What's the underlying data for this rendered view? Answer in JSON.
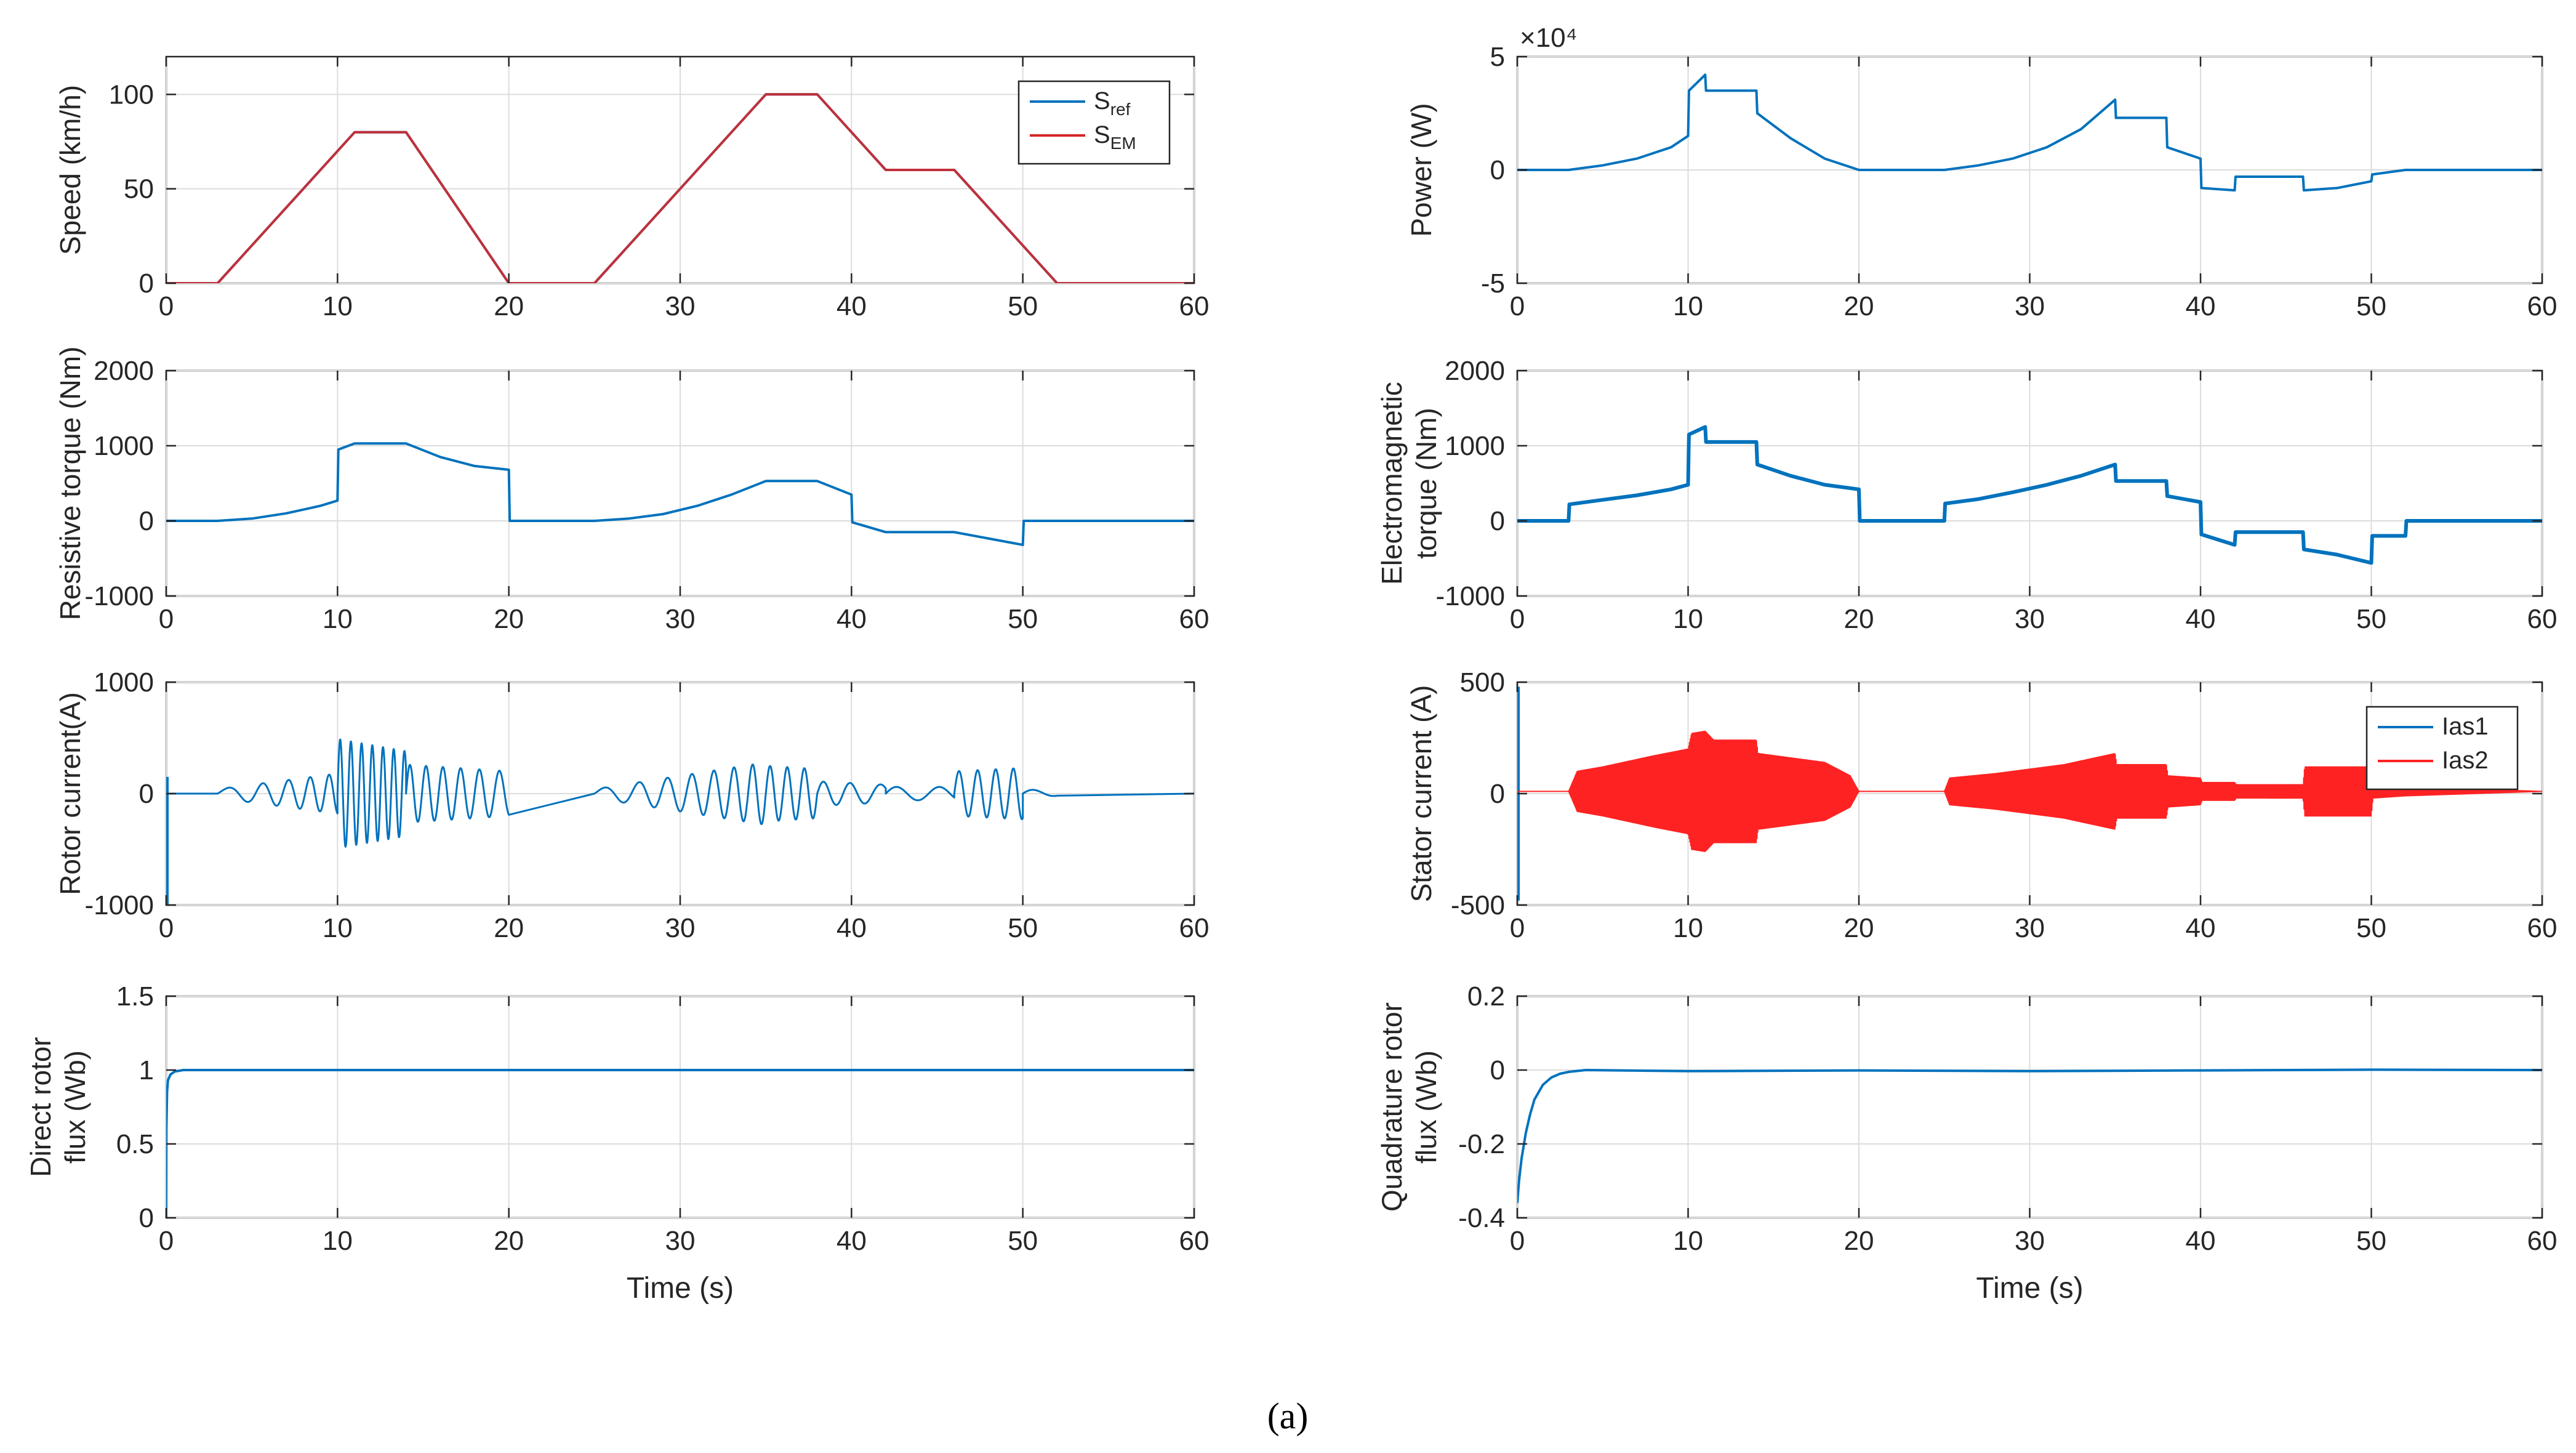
{
  "caption": "(a)",
  "colors": {
    "blue": "#0072BD",
    "red": "#D62728",
    "dark_red": "#C0303A",
    "bright_red": "#FF2222"
  },
  "chart_data": [
    {
      "id": "speed",
      "type": "line",
      "title": "",
      "xlabel": "",
      "ylabel": "Speed (km/h)",
      "xlim": [
        0,
        60
      ],
      "ylim": [
        0,
        120
      ],
      "xticks": [
        0,
        10,
        20,
        30,
        40,
        50,
        60
      ],
      "xtick_labels": [
        "0",
        "10",
        "20",
        "30",
        "40",
        "50",
        "60"
      ],
      "yticks": [
        0,
        50,
        100
      ],
      "ytick_labels": [
        "0",
        "50",
        "100"
      ],
      "grid": true,
      "exponent_label": "",
      "legend": {
        "position": "top-right",
        "entries": [
          {
            "label": "S",
            "sub": "ref",
            "color": "#0072BD"
          },
          {
            "label": "S",
            "sub": "EM",
            "color": "#D62728"
          }
        ]
      },
      "series": [
        {
          "name": "S_ref",
          "color": "#0072BD",
          "width": 4,
          "x": [
            0,
            3,
            11,
            14,
            20,
            25,
            35,
            38,
            42,
            46,
            52,
            60
          ],
          "y": [
            0,
            0,
            80,
            80,
            0,
            0,
            100,
            100,
            60,
            60,
            0,
            0
          ]
        },
        {
          "name": "S_EM",
          "color": "#C0303A",
          "width": 4,
          "x": [
            0,
            3,
            11,
            14,
            20,
            25,
            35,
            38,
            42,
            46,
            52,
            60
          ],
          "y": [
            0,
            0,
            80,
            80,
            0,
            0,
            100,
            100,
            60,
            60,
            0,
            0
          ]
        }
      ]
    },
    {
      "id": "power",
      "type": "line",
      "title": "",
      "xlabel": "",
      "ylabel": "Power (W)",
      "xlim": [
        0,
        60
      ],
      "ylim": [
        -5,
        5
      ],
      "xticks": [
        0,
        10,
        20,
        30,
        40,
        50,
        60
      ],
      "xtick_labels": [
        "0",
        "10",
        "20",
        "30",
        "40",
        "50",
        "60"
      ],
      "yticks": [
        -5,
        0,
        5
      ],
      "ytick_labels": [
        "-5",
        "0",
        "5"
      ],
      "grid": true,
      "exponent_label": "×10⁴",
      "legend": null,
      "series": [
        {
          "name": "Power",
          "color": "#0072BD",
          "width": 4,
          "x": [
            0,
            3,
            5,
            7,
            9,
            10,
            10.05,
            11,
            11.05,
            14,
            14.05,
            16,
            18,
            20,
            25,
            27,
            29,
            31,
            33,
            35,
            35.05,
            38,
            38.05,
            40,
            40.05,
            42,
            42.05,
            46,
            46.05,
            48,
            50,
            50.05,
            52,
            60
          ],
          "y": [
            0,
            0,
            0.2,
            0.5,
            1.0,
            1.5,
            3.5,
            4.2,
            3.5,
            3.5,
            2.5,
            1.4,
            0.5,
            0,
            0,
            0.2,
            0.5,
            1.0,
            1.8,
            3.1,
            2.3,
            2.3,
            1.0,
            0.5,
            -0.8,
            -0.9,
            -0.3,
            -0.3,
            -0.9,
            -0.8,
            -0.5,
            -0.2,
            0,
            0
          ]
        }
      ]
    },
    {
      "id": "resistive",
      "type": "line",
      "title": "",
      "xlabel": "",
      "ylabel": "Resistive torque (Nm)",
      "xlim": [
        0,
        60
      ],
      "ylim": [
        -1000,
        2000
      ],
      "xticks": [
        0,
        10,
        20,
        30,
        40,
        50,
        60
      ],
      "xtick_labels": [
        "0",
        "10",
        "20",
        "30",
        "40",
        "50",
        "60"
      ],
      "yticks": [
        -1000,
        0,
        1000,
        2000
      ],
      "ytick_labels": [
        "-1000",
        "0",
        "1000",
        "2000"
      ],
      "grid": true,
      "exponent_label": "",
      "legend": null,
      "series": [
        {
          "name": "Resistive torque",
          "color": "#0072BD",
          "width": 4,
          "x": [
            0,
            3,
            5,
            7,
            9,
            10,
            10.05,
            11,
            14,
            16,
            18,
            20,
            20.05,
            25,
            27,
            29,
            31,
            33,
            35,
            38,
            40,
            40.05,
            42,
            46,
            50,
            50.05,
            60
          ],
          "y": [
            0,
            0,
            30,
            100,
            200,
            270,
            950,
            1030,
            1030,
            850,
            730,
            680,
            0,
            0,
            30,
            90,
            200,
            350,
            530,
            530,
            350,
            -20,
            -150,
            -150,
            -320,
            0,
            0
          ]
        }
      ]
    },
    {
      "id": "em_torque",
      "type": "line",
      "title": "",
      "xlabel": "",
      "ylabel": "Electromagnetic torque (Nm)",
      "xlim": [
        0,
        60
      ],
      "ylim": [
        -1000,
        2000
      ],
      "xticks": [
        0,
        10,
        20,
        30,
        40,
        50,
        60
      ],
      "xtick_labels": [
        "0",
        "10",
        "20",
        "30",
        "40",
        "50",
        "60"
      ],
      "yticks": [
        -1000,
        0,
        1000,
        2000
      ],
      "ytick_labels": [
        "-1000",
        "0",
        "1000",
        "2000"
      ],
      "grid": true,
      "exponent_label": "",
      "legend": null,
      "series": [
        {
          "name": "Electromagnetic torque",
          "color": "#0072BD",
          "width": 6,
          "x": [
            0,
            3,
            3.05,
            5,
            7,
            9,
            10,
            10.05,
            11,
            11.05,
            14,
            14.05,
            16,
            18,
            20,
            20.05,
            25,
            25.05,
            27,
            29,
            31,
            33,
            35,
            35.05,
            38,
            38.05,
            40,
            40.05,
            42,
            42.05,
            46,
            46.05,
            48,
            50,
            50.05,
            52,
            52.05,
            60
          ],
          "y": [
            0,
            0,
            220,
            280,
            340,
            420,
            480,
            1150,
            1250,
            1050,
            1050,
            750,
            600,
            480,
            420,
            0,
            0,
            230,
            290,
            380,
            480,
            600,
            750,
            530,
            530,
            330,
            250,
            -180,
            -320,
            -150,
            -150,
            -380,
            -450,
            -560,
            -200,
            -200,
            0,
            0
          ]
        }
      ]
    },
    {
      "id": "rotor_current",
      "type": "line",
      "title": "",
      "xlabel": "",
      "ylabel": "Rotor current(A)",
      "xlim": [
        0,
        60
      ],
      "ylim": [
        -1000,
        1000
      ],
      "xticks": [
        0,
        10,
        20,
        30,
        40,
        50,
        60
      ],
      "xtick_labels": [
        "0",
        "10",
        "20",
        "30",
        "40",
        "50",
        "60"
      ],
      "yticks": [
        -1000,
        0,
        1000
      ],
      "ytick_labels": [
        "-1000",
        "0",
        "1000"
      ],
      "grid": true,
      "exponent_label": "",
      "legend": null,
      "series": [
        {
          "name": "Rotor current",
          "color": "#0072BD",
          "width": 3,
          "oscillation": [
            {
              "t0": 3,
              "t1": 10,
              "f0": 0.35,
              "f1": 1.0,
              "a0": 40,
              "a1": 180
            },
            {
              "t0": 10,
              "t1": 14,
              "f0": 1.6,
              "f1": 1.6,
              "a0": 490,
              "a1": 380
            },
            {
              "t0": 14,
              "t1": 20,
              "f0": 1.1,
              "f1": 0.8,
              "a0": 260,
              "a1": 200
            },
            {
              "t0": 25,
              "t1": 35,
              "f0": 0.4,
              "f1": 1.0,
              "a0": 40,
              "a1": 280
            },
            {
              "t0": 35,
              "t1": 38,
              "f0": 1.0,
              "f1": 1.0,
              "a0": 250,
              "a1": 220
            },
            {
              "t0": 38,
              "t1": 42,
              "f0": 0.7,
              "f1": 0.5,
              "a0": 110,
              "a1": 80
            },
            {
              "t0": 42,
              "t1": 46,
              "f0": 0.4,
              "f1": 0.4,
              "a0": 60,
              "a1": 60
            },
            {
              "t0": 46,
              "t1": 50,
              "f0": 0.9,
              "f1": 1.0,
              "a0": 200,
              "a1": 230
            },
            {
              "t0": 50,
              "t1": 52,
              "f0": 0.4,
              "f1": 0.4,
              "a0": 40,
              "a1": 20
            }
          ],
          "spike": {
            "t": 0,
            "min": -1000,
            "max": 150
          }
        }
      ]
    },
    {
      "id": "stator_current",
      "type": "line",
      "title": "",
      "xlabel": "",
      "ylabel": "Stator current (A)",
      "xlim": [
        0,
        60
      ],
      "ylim": [
        -500,
        500
      ],
      "xticks": [
        0,
        10,
        20,
        30,
        40,
        50,
        60
      ],
      "xtick_labels": [
        "0",
        "10",
        "20",
        "30",
        "40",
        "50",
        "60"
      ],
      "yticks": [
        -500,
        0,
        500
      ],
      "ytick_labels": [
        "-500",
        "0",
        "500"
      ],
      "grid": true,
      "exponent_label": "",
      "legend": {
        "position": "top-right",
        "entries": [
          {
            "label": "Ias1",
            "sub": "",
            "color": "#0072BD"
          },
          {
            "label": "Ias2",
            "sub": "",
            "color": "#FF2222"
          }
        ]
      },
      "series": [
        {
          "name": "Ias1",
          "color": "#0072BD",
          "width": 3,
          "envelope_only": false,
          "spike": {
            "t": 0,
            "min": -480,
            "max": 480
          }
        },
        {
          "name": "Ias2",
          "color": "#FF2222",
          "width": 2,
          "envelope": {
            "x": [
              0,
              3,
              3.5,
              5,
              8,
              10,
              10.2,
              11,
              11.5,
              14,
              14.1,
              18,
              19.5,
              20,
              25,
              25.3,
              28,
              32,
              35,
              35.1,
              38,
              38.1,
              40,
              40.1,
              42,
              42.1,
              46,
              46.1,
              49,
              50,
              50.1,
              52,
              60
            ],
            "y": [
              0,
              0,
              90,
              110,
              160,
              190,
              260,
              270,
              230,
              230,
              170,
              130,
              70,
              0,
              0,
              60,
              80,
              120,
              170,
              120,
              120,
              70,
              60,
              40,
              40,
              30,
              30,
              110,
              110,
              110,
              30,
              20,
              0
            ]
          },
          "offset": 10
        }
      ]
    },
    {
      "id": "direct_flux",
      "type": "line",
      "title": "",
      "xlabel": "Time (s)",
      "ylabel": "Direct rotor flux (Wb)",
      "ylabel_lines": [
        "Direct rotor",
        "flux (Wb)"
      ],
      "xlim": [
        0,
        60
      ],
      "ylim": [
        0,
        1.5
      ],
      "xticks": [
        0,
        10,
        20,
        30,
        40,
        50,
        60
      ],
      "xtick_labels": [
        "0",
        "10",
        "20",
        "30",
        "40",
        "50",
        "60"
      ],
      "yticks": [
        0,
        0.5,
        1,
        1.5
      ],
      "ytick_labels": [
        "0",
        "0.5",
        "1",
        "1.5"
      ],
      "grid": true,
      "exponent_label": "",
      "legend": null,
      "series": [
        {
          "name": "Direct rotor flux",
          "color": "#0072BD",
          "width": 4,
          "x": [
            0,
            0.01,
            0.05,
            0.1,
            0.25,
            0.5,
            1,
            2,
            60
          ],
          "y": [
            0,
            0.6,
            0.85,
            0.93,
            0.97,
            0.99,
            1.0,
            1.0,
            1.0
          ]
        }
      ]
    },
    {
      "id": "quad_flux",
      "type": "line",
      "title": "",
      "xlabel": "Time (s)",
      "ylabel": "Quadrature rotor flux (Wb)",
      "ylabel_lines": [
        "Quadrature rotor",
        "flux (Wb)"
      ],
      "xlim": [
        0,
        60
      ],
      "ylim": [
        -0.4,
        0.2
      ],
      "xticks": [
        0,
        10,
        20,
        30,
        40,
        50,
        60
      ],
      "xtick_labels": [
        "0",
        "10",
        "20",
        "30",
        "40",
        "50",
        "60"
      ],
      "yticks": [
        -0.4,
        -0.2,
        0,
        0.2
      ],
      "ytick_labels": [
        "-0.4",
        "-0.2",
        "0",
        "0.2"
      ],
      "grid": true,
      "exponent_label": "",
      "legend": null,
      "series": [
        {
          "name": "Quadrature rotor flux",
          "color": "#0072BD",
          "width": 4,
          "x": [
            0,
            0.1,
            0.25,
            0.5,
            0.75,
            1,
            1.5,
            2,
            2.5,
            3,
            4,
            10,
            20,
            30,
            40,
            50,
            60
          ],
          "y": [
            -0.36,
            -0.3,
            -0.24,
            -0.17,
            -0.12,
            -0.08,
            -0.04,
            -0.02,
            -0.01,
            -0.005,
            0,
            -0.003,
            -0.001,
            -0.003,
            -0.001,
            0.001,
            0
          ]
        }
      ]
    }
  ]
}
